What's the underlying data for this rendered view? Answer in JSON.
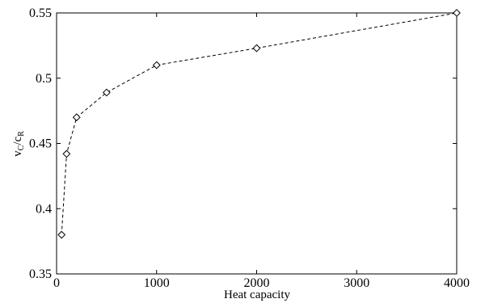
{
  "chart_data": {
    "type": "line",
    "title": "",
    "xlabel": "Heat capacity",
    "ylabel_main_1": "v",
    "ylabel_sub_1": "C",
    "ylabel_slash": "/c",
    "ylabel_sub_2": "R",
    "xlim": [
      0,
      4000
    ],
    "ylim": [
      0.35,
      0.55
    ],
    "xticks": [
      0,
      1000,
      2000,
      3000,
      4000
    ],
    "xtick_labels": [
      "0",
      "1000",
      "2000",
      "3000",
      "4000"
    ],
    "yticks": [
      0.35,
      0.4,
      0.45,
      0.5,
      0.55
    ],
    "ytick_labels": [
      "0.35",
      "0.4",
      "0.45",
      "0.5",
      "0.55"
    ],
    "grid": false,
    "series": [
      {
        "x": [
          50,
          100,
          200,
          500,
          1000,
          2000,
          4000
        ],
        "y": [
          0.38,
          0.442,
          0.47,
          0.489,
          0.51,
          0.523,
          0.55
        ],
        "line_style": "dashed",
        "marker": "diamond",
        "color": "#000000"
      }
    ]
  }
}
